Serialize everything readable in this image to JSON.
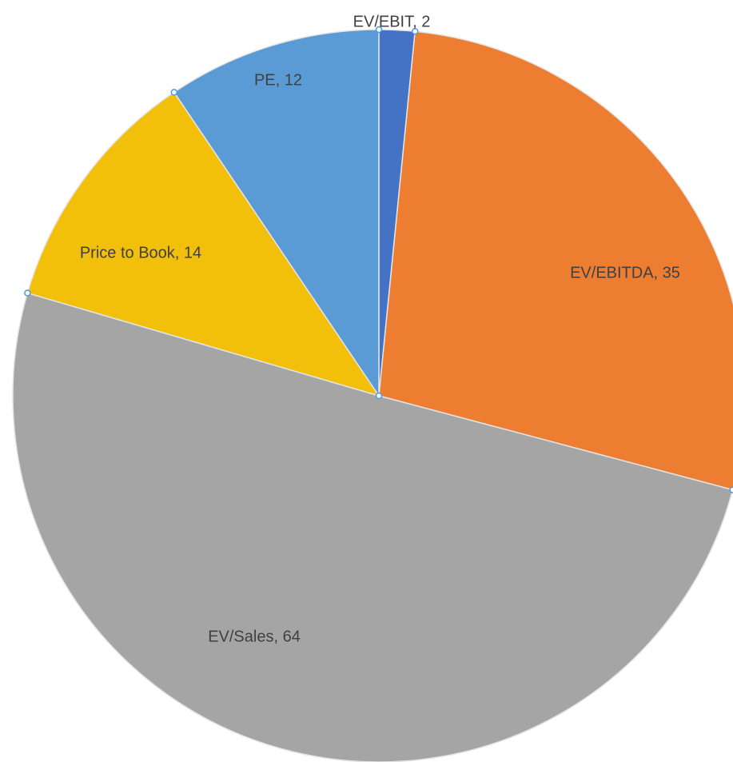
{
  "chart_data": {
    "type": "pie",
    "start_angle": "12 o'clock",
    "direction": "clockwise",
    "legend": "none",
    "slices": [
      {
        "label": "EV/EBIT",
        "value": 2,
        "text": "EV/EBIT, 2",
        "color": "#4472c4"
      },
      {
        "label": "EV/EBITDA",
        "value": 35,
        "text": "EV/EBITDA, 35",
        "color": "#ed7d31"
      },
      {
        "label": "EV/Sales",
        "value": 64,
        "text": "EV/Sales, 64",
        "color": "#a5a5a5"
      },
      {
        "label": "Price to Book",
        "value": 14,
        "text": "Price to Book, 14",
        "color": "#f2bf0b"
      },
      {
        "label": "PE",
        "value": 12,
        "text": "PE, 12",
        "color": "#5b9bd5"
      }
    ]
  }
}
